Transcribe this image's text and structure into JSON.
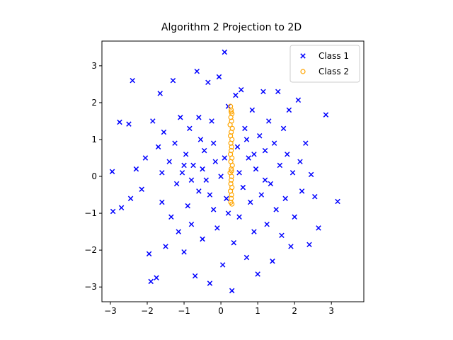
{
  "chart_data": {
    "type": "scatter",
    "title": "Algorithm 2 Projection to 2D",
    "xlim": [
      -3.23,
      3.88
    ],
    "ylim": [
      -3.4,
      3.67
    ],
    "xticks": [
      {
        "value": -3,
        "label": "−3"
      },
      {
        "value": -2,
        "label": "−2"
      },
      {
        "value": -1,
        "label": "−1"
      },
      0,
      1,
      2,
      3
    ],
    "yticks": [
      {
        "value": -3,
        "label": "−3"
      },
      {
        "value": -2,
        "label": "−2"
      },
      {
        "value": -1,
        "label": "−1"
      },
      0,
      1,
      2,
      3
    ],
    "legend": "upper right",
    "series": [
      {
        "name": "Class 1",
        "color": "#0000ff",
        "marker": "x",
        "x": [
          -2.93,
          -2.95,
          -2.75,
          -2.7,
          -2.5,
          -2.4,
          -2.45,
          -2.3,
          -2.15,
          -2.05,
          -1.95,
          -1.9,
          -1.85,
          -1.75,
          -1.7,
          -1.65,
          -1.6,
          -1.55,
          -1.5,
          -1.4,
          -1.35,
          -1.3,
          -1.25,
          -1.2,
          -1.15,
          -1.1,
          -1.05,
          -1,
          -0.95,
          -0.9,
          -0.85,
          -0.8,
          -0.75,
          -0.7,
          -0.65,
          -0.6,
          -0.55,
          -0.5,
          -0.45,
          -0.4,
          -0.35,
          -0.3,
          -0.25,
          -0.2,
          -0.15,
          -0.1,
          -0.05,
          0,
          0.05,
          0.1,
          0.15,
          0.2,
          0.3,
          0.35,
          0.4,
          0.45,
          0.5,
          0.55,
          0.6,
          0.65,
          0.7,
          0.75,
          0.8,
          0.85,
          0.9,
          0.95,
          1,
          1.05,
          1.1,
          1.15,
          1.2,
          1.25,
          1.3,
          1.35,
          1.4,
          1.45,
          1.5,
          1.55,
          1.6,
          1.65,
          1.7,
          1.75,
          1.8,
          1.85,
          1.9,
          1.95,
          2,
          2.1,
          2.15,
          2.2,
          2.3,
          2.4,
          2.45,
          2.55,
          2.65,
          2.85,
          3.17,
          -0.5,
          -0.3,
          0.1,
          0.5,
          0.7,
          -0.8,
          -1,
          0.9,
          -0.2,
          0.2,
          -1.6,
          1.2,
          -0.6
        ],
        "y": [
          -0.95,
          0.13,
          1.47,
          -0.85,
          1.42,
          2.6,
          -0.6,
          0.2,
          -0.35,
          0.5,
          -2.1,
          -2.85,
          1.5,
          -2.75,
          0.8,
          2.25,
          -0.7,
          1.2,
          -1.9,
          0.4,
          -1.1,
          2.6,
          0.9,
          -0.2,
          -1.5,
          1.6,
          0.1,
          -2.05,
          0.6,
          -0.8,
          1.3,
          -1.3,
          0.3,
          -2.7,
          2.85,
          -0.4,
          1,
          -1.7,
          0.7,
          -0.1,
          2.55,
          -2.9,
          1.5,
          -0.9,
          0.4,
          -1.4,
          2.7,
          0,
          -2.4,
          3.37,
          -0.6,
          1.9,
          -3.1,
          -1.8,
          2.2,
          0.8,
          -1.1,
          2.35,
          -0.3,
          1.3,
          -2.2,
          0.5,
          -0.7,
          1.8,
          -1.5,
          0.2,
          -2.65,
          1.1,
          -0.5,
          2.3,
          0.7,
          -1.3,
          1.5,
          -0.2,
          -2.3,
          0.9,
          -0.9,
          2.3,
          0.3,
          -1.6,
          1.3,
          -0.6,
          0.6,
          1.8,
          -1.9,
          0.1,
          -1.1,
          2.07,
          0.4,
          -0.4,
          0.9,
          -1.85,
          0.05,
          -0.55,
          -1.4,
          1.67,
          -0.68,
          0.2,
          -0.5,
          0.5,
          0.1,
          1,
          -0.1,
          0.3,
          0.6,
          0.9,
          -1,
          0.1,
          -0.1,
          1.6
        ]
      },
      {
        "name": "Class 2",
        "color": "#ffa500",
        "marker": "o",
        "x": [
          0.26,
          0.28,
          0.3,
          0.27,
          0.29,
          0.25,
          0.31,
          0.28,
          0.26,
          0.3,
          0.27,
          0.29,
          0.28,
          0.26,
          0.3,
          0.27,
          0.31,
          0.28,
          0.25,
          0.29,
          0.28,
          0.27,
          0.3,
          0.26,
          0.29,
          0.28,
          0.27,
          0.3,
          0.28,
          0.29
        ],
        "y": [
          1.9,
          1.8,
          1.7,
          1.6,
          1.5,
          1.4,
          1.3,
          1.2,
          1.1,
          1.0,
          0.9,
          0.8,
          0.7,
          0.6,
          0.5,
          0.4,
          0.3,
          0.2,
          0.1,
          0.0,
          -0.1,
          -0.2,
          -0.3,
          -0.4,
          -0.5,
          -0.6,
          -0.7,
          -0.75,
          1.75,
          0.15
        ]
      }
    ]
  }
}
